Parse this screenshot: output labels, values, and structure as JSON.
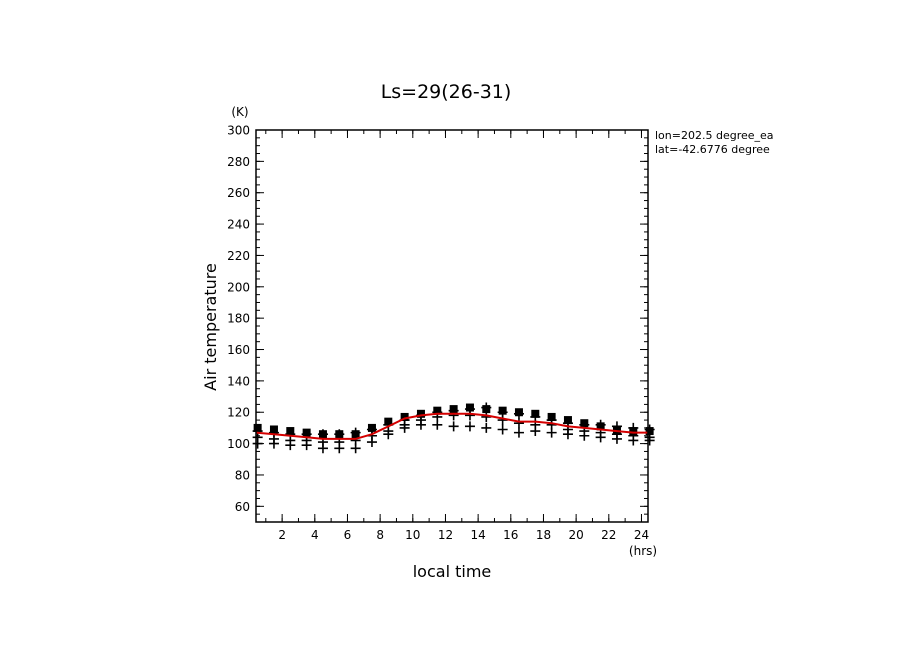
{
  "chart_data": {
    "type": "scatter",
    "title": "Ls=29(26-31)",
    "xlabel": "local time",
    "ylabel": "Air temperature",
    "x_unit": "(hrs)",
    "y_unit": "(K)",
    "xlim": [
      0.4,
      24.4
    ],
    "ylim": [
      50,
      300
    ],
    "x_ticks": [
      2,
      4,
      6,
      8,
      10,
      12,
      14,
      16,
      18,
      20,
      22,
      24
    ],
    "y_ticks": [
      60,
      80,
      100,
      120,
      140,
      160,
      180,
      200,
      220,
      240,
      260,
      280,
      300
    ],
    "annotations": [
      "lon=202.5 degree_ea",
      "lat=-42.6776 degree"
    ],
    "colors": {
      "fit_line": "#d40000",
      "markers": "#000000"
    },
    "series": [
      {
        "marker": "square",
        "x": [
          0.5,
          1.5,
          2.5,
          3.5,
          4.5,
          5.5,
          6.5,
          7.5,
          8.5,
          9.5,
          10.5,
          11.5,
          12.5,
          13.5,
          14.5,
          15.5,
          16.5,
          17.5,
          18.5,
          19.5,
          20.5,
          21.5,
          22.5,
          23.5,
          24.5
        ],
        "y": [
          110,
          109,
          108,
          107,
          106,
          106,
          106,
          110,
          114,
          117,
          119,
          121,
          122,
          123,
          122,
          121,
          120,
          119,
          117,
          115,
          113,
          111,
          109,
          108,
          108
        ]
      },
      {
        "marker": "plus",
        "x": [
          0.5,
          0.5,
          0.5,
          1.5,
          1.5,
          1.5,
          2.5,
          2.5,
          2.5,
          3.5,
          3.5,
          3.5,
          4.5,
          4.5,
          4.5,
          5.5,
          5.5,
          5.5,
          6.5,
          6.5,
          6.5,
          7.5,
          7.5,
          7.5,
          8.5,
          8.5,
          8.5,
          9.5,
          9.5,
          9.5,
          10.5,
          10.5,
          10.5,
          11.5,
          11.5,
          11.5,
          12.5,
          12.5,
          12.5,
          13.5,
          13.5,
          13.5,
          14.5,
          14.5,
          14.5,
          15.5,
          15.5,
          15.5,
          16.5,
          16.5,
          16.5,
          17.5,
          17.5,
          17.5,
          18.5,
          18.5,
          18.5,
          19.5,
          19.5,
          19.5,
          20.5,
          20.5,
          20.5,
          21.5,
          21.5,
          21.5,
          22.5,
          22.5,
          22.5,
          23.5,
          23.5,
          23.5,
          24.5,
          24.5,
          24.5
        ],
        "y": [
          108,
          104,
          100,
          107,
          103,
          100,
          106,
          102,
          99,
          106,
          102,
          99,
          106,
          101,
          97,
          106,
          101,
          97,
          107,
          102,
          97,
          109,
          105,
          101,
          112,
          108,
          106,
          115,
          112,
          110,
          118,
          115,
          112,
          120,
          117,
          112,
          121,
          118,
          111,
          122,
          118,
          111,
          123,
          117,
          110,
          120,
          115,
          109,
          119,
          113,
          107,
          117,
          112,
          108,
          115,
          112,
          107,
          113,
          109,
          106,
          112,
          108,
          105,
          112,
          107,
          104,
          111,
          106,
          103,
          110,
          105,
          102,
          109,
          104,
          102
        ]
      },
      {
        "type": "line",
        "x": [
          0.4,
          1.5,
          2.5,
          3.5,
          4.5,
          5.5,
          6.5,
          7.5,
          8.5,
          9.5,
          10.5,
          11.5,
          12.5,
          13.5,
          14.5,
          15.5,
          16.5,
          17.5,
          18.5,
          19.5,
          20.5,
          21.5,
          22.5,
          23.5,
          24.4
        ],
        "y": [
          107,
          106,
          105,
          104,
          103,
          103,
          103,
          106,
          111,
          116,
          118,
          119,
          119,
          119,
          118,
          116,
          114,
          114,
          113,
          111,
          110,
          109,
          108,
          107,
          107
        ]
      }
    ]
  }
}
